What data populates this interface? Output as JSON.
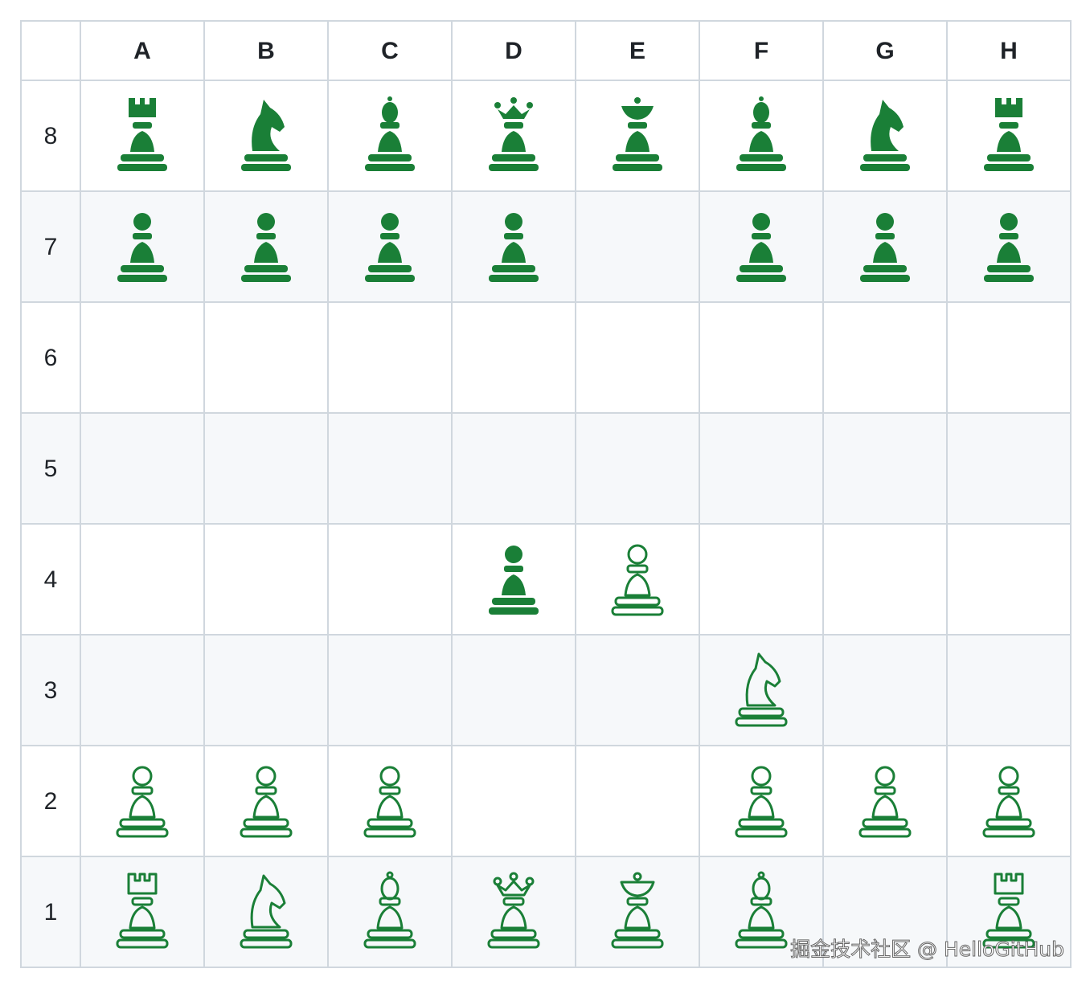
{
  "columns": [
    "A",
    "B",
    "C",
    "D",
    "E",
    "F",
    "G",
    "H"
  ],
  "ranks": [
    "8",
    "7",
    "6",
    "5",
    "4",
    "3",
    "2",
    "1"
  ],
  "watermark": "掘金技术社区 @ HelloGitHub"
}
